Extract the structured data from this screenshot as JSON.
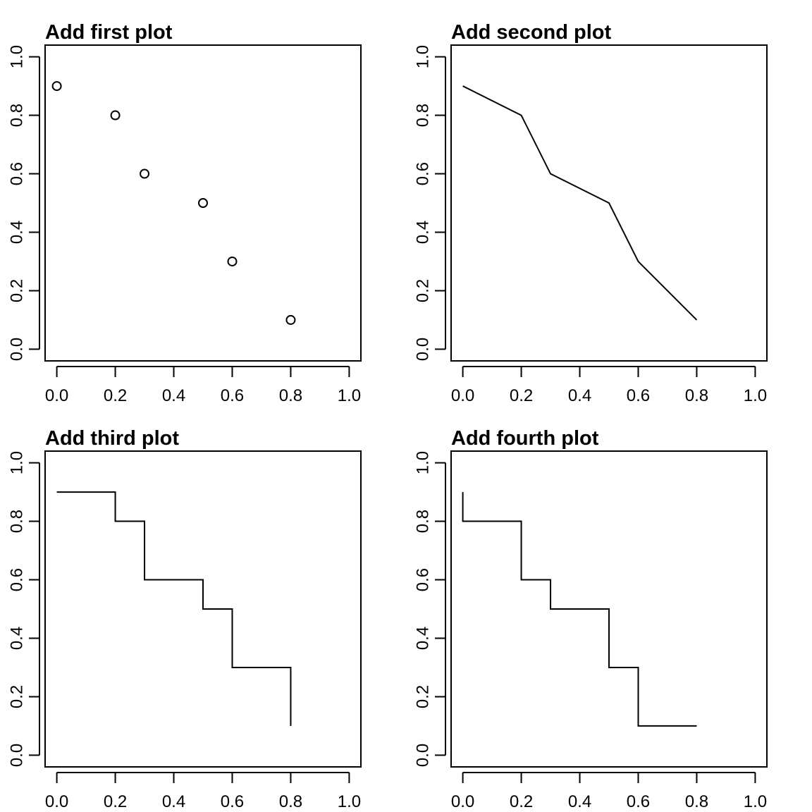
{
  "chart_data": [
    {
      "type": "scatter",
      "title": "Add first plot",
      "plot_type": "p",
      "x": [
        0.0,
        0.2,
        0.3,
        0.5,
        0.6,
        0.8
      ],
      "y": [
        0.9,
        0.8,
        0.6,
        0.5,
        0.3,
        0.1
      ],
      "xlim": [
        0,
        1
      ],
      "ylim": [
        0,
        1
      ],
      "xticks": [
        "0.0",
        "0.2",
        "0.4",
        "0.6",
        "0.8",
        "1.0"
      ],
      "yticks": [
        "0.0",
        "0.2",
        "0.4",
        "0.6",
        "0.8",
        "1.0"
      ],
      "xlabel": "",
      "ylabel": ""
    },
    {
      "type": "line",
      "title": "Add second plot",
      "plot_type": "l",
      "x": [
        0.0,
        0.2,
        0.3,
        0.5,
        0.6,
        0.8
      ],
      "y": [
        0.9,
        0.8,
        0.6,
        0.5,
        0.3,
        0.1
      ],
      "xlim": [
        0,
        1
      ],
      "ylim": [
        0,
        1
      ],
      "xticks": [
        "0.0",
        "0.2",
        "0.4",
        "0.6",
        "0.8",
        "1.0"
      ],
      "yticks": [
        "0.0",
        "0.2",
        "0.4",
        "0.6",
        "0.8",
        "1.0"
      ],
      "xlabel": "",
      "ylabel": ""
    },
    {
      "type": "line",
      "title": "Add third plot",
      "plot_type": "s",
      "x": [
        0.0,
        0.2,
        0.3,
        0.5,
        0.6,
        0.8
      ],
      "y": [
        0.9,
        0.8,
        0.6,
        0.5,
        0.3,
        0.1
      ],
      "xlim": [
        0,
        1
      ],
      "ylim": [
        0,
        1
      ],
      "xticks": [
        "0.0",
        "0.2",
        "0.4",
        "0.6",
        "0.8",
        "1.0"
      ],
      "yticks": [
        "0.0",
        "0.2",
        "0.4",
        "0.6",
        "0.8",
        "1.0"
      ],
      "xlabel": "",
      "ylabel": ""
    },
    {
      "type": "line",
      "title": "Add fourth plot",
      "plot_type": "S",
      "x": [
        0.0,
        0.2,
        0.3,
        0.5,
        0.6,
        0.8
      ],
      "y": [
        0.9,
        0.8,
        0.6,
        0.5,
        0.3,
        0.1
      ],
      "xlim": [
        0,
        1
      ],
      "ylim": [
        0,
        1
      ],
      "xticks": [
        "0.0",
        "0.2",
        "0.4",
        "0.6",
        "0.8",
        "1.0"
      ],
      "yticks": [
        "0.0",
        "0.2",
        "0.4",
        "0.6",
        "0.8",
        "1.0"
      ],
      "xlabel": "",
      "ylabel": ""
    }
  ]
}
